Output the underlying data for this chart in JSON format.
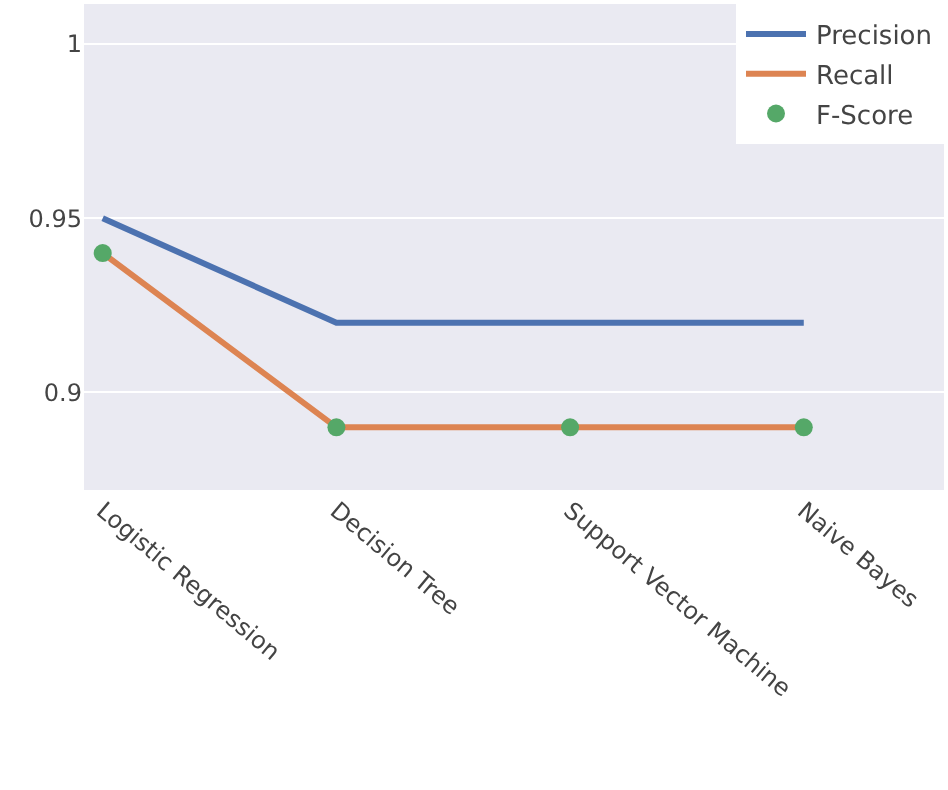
{
  "chart_data": {
    "type": "line",
    "categories": [
      "Logistic Regression",
      "Decision Tree",
      "Support Vector Machine",
      "Naive Bayes"
    ],
    "series": [
      {
        "name": "Precision",
        "color": "#4c72b0",
        "values": [
          0.95,
          0.92,
          0.92,
          0.92
        ]
      },
      {
        "name": "Recall",
        "color": "#dd8452",
        "values": [
          0.94,
          0.89,
          0.89,
          0.89
        ]
      },
      {
        "name": "F-Score",
        "type": "scatter",
        "marker": "circle",
        "color": "#55a868",
        "values": [
          0.94,
          0.89,
          0.89,
          0.89
        ]
      }
    ],
    "ylim": [
      0.872,
      1.0115
    ],
    "yticks": [
      0.9,
      0.95,
      1
    ],
    "grid": "y",
    "legend": "top right"
  }
}
